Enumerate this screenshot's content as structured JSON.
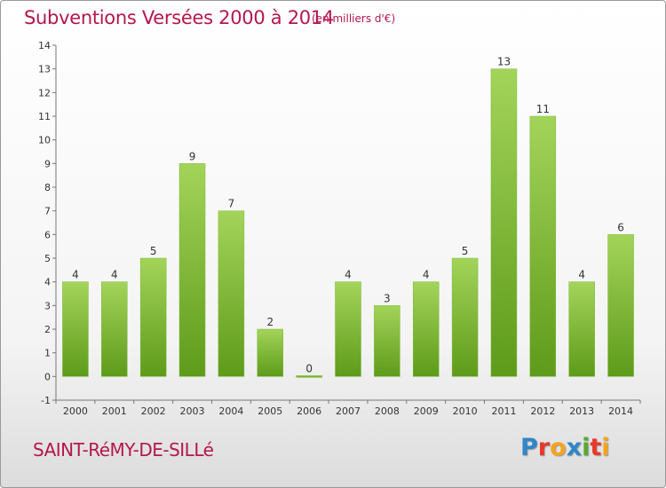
{
  "header": {
    "title": "Subventions Versées 2000 à 2014",
    "subtitle": "(en milliers d'€)"
  },
  "footer": {
    "commune": "SAINT-RéMY-DE-SILLé",
    "logo_letters": [
      {
        "ch": "P",
        "color": "#2f86c9"
      },
      {
        "ch": "r",
        "color": "#e8382b"
      },
      {
        "ch": "o",
        "color": "#f3a51c"
      },
      {
        "ch": "x",
        "color": "#2f86c9"
      },
      {
        "ch": "i",
        "color": "#5aa832"
      },
      {
        "ch": "t",
        "color": "#e8382b"
      },
      {
        "ch": "i",
        "color": "#f3a51c"
      }
    ]
  },
  "chart_data": {
    "type": "bar",
    "title": "Subventions Versées 2000 à 2014",
    "subtitle": "(en milliers d'€)",
    "categories": [
      "2000",
      "2001",
      "2002",
      "2003",
      "2004",
      "2005",
      "2006",
      "2007",
      "2008",
      "2009",
      "2010",
      "2011",
      "2012",
      "2013",
      "2014"
    ],
    "values": [
      4,
      4,
      5,
      9,
      7,
      2,
      0,
      4,
      3,
      4,
      5,
      13,
      11,
      4,
      6
    ],
    "ylim": [
      -1,
      14
    ],
    "yticks": [
      "-1",
      "0",
      "1",
      "2",
      "3",
      "4",
      "5",
      "6",
      "7",
      "8",
      "9",
      "10",
      "11",
      "12",
      "13",
      "14"
    ],
    "grid": false,
    "legend": "none",
    "bar_color_light": "#a3d45a",
    "bar_color_dark": "#5e9b1a",
    "axis_color": "#777777",
    "label_color": "#333333"
  }
}
